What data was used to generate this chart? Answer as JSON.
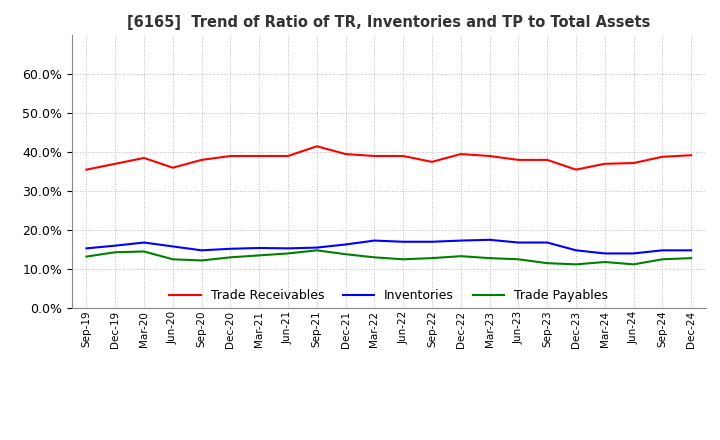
{
  "title": "[6165]  Trend of Ratio of TR, Inventories and TP to Total Assets",
  "x_labels": [
    "Sep-19",
    "Dec-19",
    "Mar-20",
    "Jun-20",
    "Sep-20",
    "Dec-20",
    "Mar-21",
    "Jun-21",
    "Sep-21",
    "Dec-21",
    "Mar-22",
    "Jun-22",
    "Sep-22",
    "Dec-22",
    "Mar-23",
    "Jun-23",
    "Sep-23",
    "Dec-23",
    "Mar-24",
    "Jun-24",
    "Sep-24",
    "Dec-24"
  ],
  "trade_receivables": [
    0.355,
    0.37,
    0.385,
    0.36,
    0.38,
    0.39,
    0.39,
    0.39,
    0.415,
    0.395,
    0.39,
    0.39,
    0.375,
    0.395,
    0.39,
    0.38,
    0.38,
    0.355,
    0.37,
    0.372,
    0.388,
    0.392
  ],
  "inventories": [
    0.153,
    0.16,
    0.168,
    0.158,
    0.148,
    0.152,
    0.154,
    0.153,
    0.155,
    0.163,
    0.173,
    0.17,
    0.17,
    0.173,
    0.175,
    0.168,
    0.168,
    0.148,
    0.14,
    0.14,
    0.148,
    0.148
  ],
  "trade_payables": [
    0.132,
    0.143,
    0.145,
    0.125,
    0.122,
    0.13,
    0.135,
    0.14,
    0.148,
    0.138,
    0.13,
    0.125,
    0.128,
    0.133,
    0.128,
    0.125,
    0.115,
    0.112,
    0.118,
    0.112,
    0.125,
    0.128
  ],
  "ylim": [
    0.0,
    0.7
  ],
  "yticks": [
    0.0,
    0.1,
    0.2,
    0.3,
    0.4,
    0.5,
    0.6
  ],
  "color_tr": "#FF0000",
  "color_inv": "#0000FF",
  "color_tp": "#008000",
  "background_color": "#FFFFFF",
  "grid_color": "#BBBBBB",
  "legend_labels": [
    "Trade Receivables",
    "Inventories",
    "Trade Payables"
  ]
}
